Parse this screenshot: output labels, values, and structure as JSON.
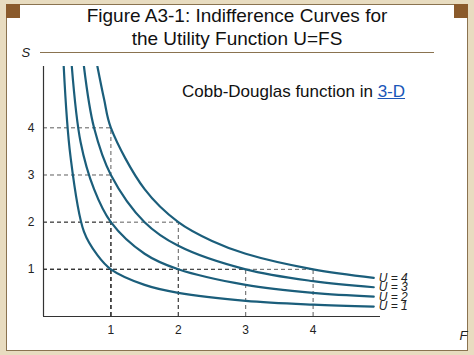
{
  "chart_data": {
    "type": "line",
    "title": [
      "Figure A3-1: Indifference Curves for",
      "the Utility Function U=FS"
    ],
    "annotation": {
      "text": "Cobb-Douglas function in ",
      "link": "3-D"
    },
    "x_label": "F",
    "y_label": "S",
    "xlim": [
      0,
      5
    ],
    "ylim": [
      0,
      5.3
    ],
    "xticks": [
      1,
      2,
      3,
      4
    ],
    "yticks": [
      1,
      2,
      3,
      4
    ],
    "grid": false,
    "series": [
      {
        "name": "U = 1",
        "color": "#1b5e7b",
        "x": [
          0.3,
          0.4,
          0.6,
          0.8,
          1,
          1.5,
          2,
          3,
          4,
          4.9
        ],
        "values": [
          5.3,
          3.4,
          1.8,
          1.3,
          1,
          0.67,
          0.5,
          0.33,
          0.25,
          0.21
        ]
      },
      {
        "name": "U = 2",
        "color": "#1b5e7b",
        "x": [
          0.42,
          0.55,
          0.75,
          1,
          1.5,
          2,
          3,
          4,
          4.9
        ],
        "values": [
          5.3,
          3.7,
          2.7,
          2,
          1.33,
          1,
          0.67,
          0.5,
          0.42
        ]
      },
      {
        "name": "U = 3",
        "color": "#1b5e7b",
        "x": [
          0.6,
          0.75,
          1,
          1.5,
          2,
          3,
          4,
          4.9
        ],
        "values": [
          5.3,
          4,
          3,
          2,
          1.5,
          1,
          0.75,
          0.62
        ]
      },
      {
        "name": "U = 4",
        "color": "#1b5e7b",
        "x": [
          0.8,
          0.9,
          1,
          1.5,
          2,
          2.5,
          3,
          4,
          4.9
        ],
        "values": [
          5.3,
          4.6,
          4,
          2.7,
          2,
          1.6,
          1.33,
          1,
          0.82
        ]
      }
    ],
    "guides": {
      "line_style": "dashed",
      "points": [
        [
          1,
          1
        ],
        [
          1,
          2
        ],
        [
          2,
          1
        ],
        [
          1,
          3
        ],
        [
          3,
          1
        ],
        [
          1,
          4
        ],
        [
          2,
          2
        ],
        [
          4,
          1
        ]
      ]
    }
  }
}
